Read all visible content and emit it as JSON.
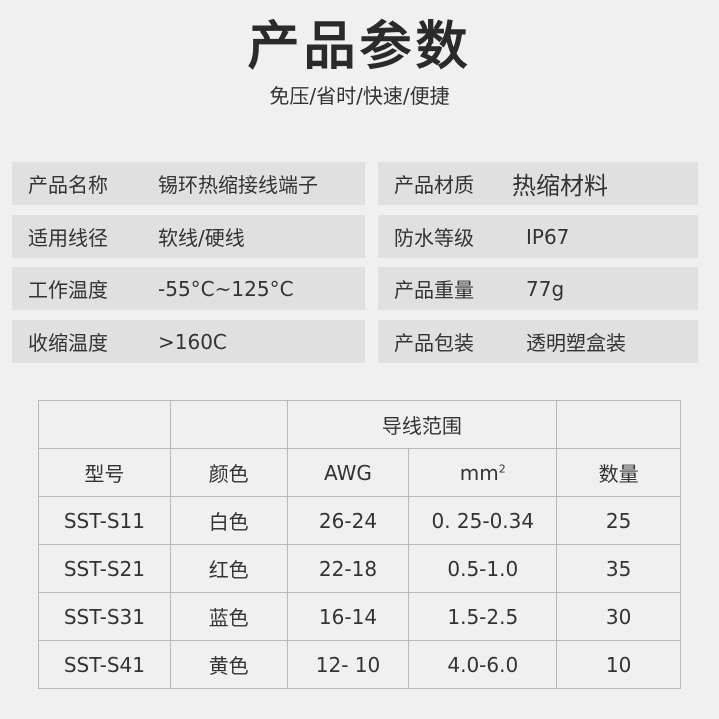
{
  "title": "产品参数",
  "subtitle": "免压/省时/快速/便捷",
  "specs_left": [
    {
      "label": "产品名称",
      "value": "锡环热缩接线端子"
    },
    {
      "label": "适用线径",
      "value": "软线/硬线"
    },
    {
      "label": "工作温度",
      "value": "-55°C~125°C"
    },
    {
      "label": "收缩温度",
      "value": ">160C"
    }
  ],
  "specs_right": [
    {
      "label": "产品材质",
      "value": "热缩材料"
    },
    {
      "label": "防水等级",
      "value": "IP67"
    },
    {
      "label": "产品重量",
      "value": "77g"
    },
    {
      "label": "产品包装",
      "value": "透明塑盒装"
    }
  ],
  "table": {
    "group_header": "导线范围",
    "headers": {
      "model": "型号",
      "color": "颜色",
      "awg": "AWG",
      "mm": "mm",
      "mm_sup": "2",
      "qty": "数量"
    },
    "rows": [
      {
        "model": "SST-S11",
        "color": "白色",
        "awg": "26-24",
        "mm": "0. 25-0.34",
        "qty": "25"
      },
      {
        "model": "SST-S21",
        "color": "红色",
        "awg": "22-18",
        "mm": "0.5-1.0",
        "qty": "35"
      },
      {
        "model": "SST-S31",
        "color": "蓝色",
        "awg": "16-14",
        "mm": "1.5-2.5",
        "qty": "30"
      },
      {
        "model": "SST-S41",
        "color": "黄色",
        "awg": "12- 10",
        "mm": "4.0-6.0",
        "qty": "10"
      }
    ]
  }
}
